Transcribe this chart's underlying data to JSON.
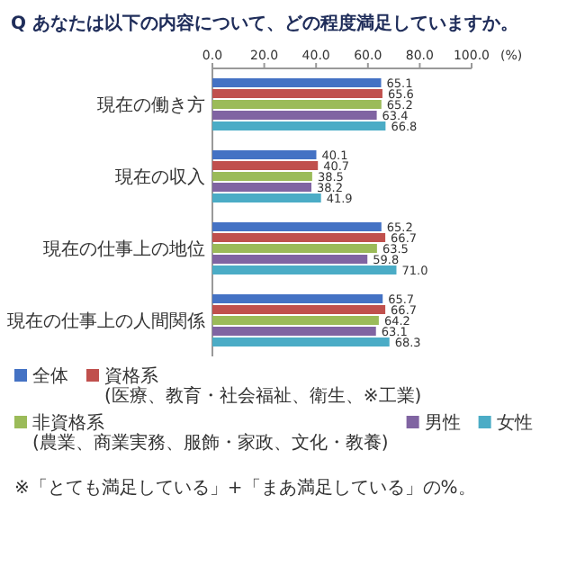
{
  "chart_data": {
    "type": "bar",
    "orientation": "horizontal",
    "title": "Q あなたは以下の内容について、どの程度満足していますか。",
    "xlabel": "(%)",
    "categories": [
      "現在の働き方",
      "現在の収入",
      "現在の仕事上の地位",
      "現在の仕事上の人間関係"
    ],
    "xlim": [
      0,
      100
    ],
    "xticks": [
      {
        "value": 0,
        "label": "0.0"
      },
      {
        "value": 20,
        "label": "20.0"
      },
      {
        "value": 40,
        "label": "40.0"
      },
      {
        "value": 60,
        "label": "60.0"
      },
      {
        "value": 80,
        "label": "80.0"
      },
      {
        "value": 100,
        "label": "100.0"
      }
    ],
    "series": [
      {
        "name": "全体",
        "color": "#4472c4",
        "values": [
          65.1,
          40.1,
          65.2,
          65.7
        ],
        "value_labels": [
          "65.1",
          "40.1",
          "65.2",
          "65.7"
        ]
      },
      {
        "name": "資格系\n(医療、教育・社会福祉、衛生、※工業)",
        "color": "#c0504d",
        "values": [
          65.6,
          40.7,
          66.7,
          66.7
        ],
        "value_labels": [
          "65.6",
          "40.7",
          "66.7",
          "66.7"
        ]
      },
      {
        "name": "非資格系\n(農業、商業実務、服飾・家政、文化・教養)",
        "color": "#9bbb59",
        "values": [
          65.2,
          38.5,
          63.5,
          64.2
        ],
        "value_labels": [
          "65.2",
          "38.5",
          "63.5",
          "64.2"
        ]
      },
      {
        "name": "男性",
        "color": "#8064a2",
        "values": [
          63.4,
          38.2,
          59.8,
          63.1
        ],
        "value_labels": [
          "63.4",
          "38.2",
          "59.8",
          "63.1"
        ]
      },
      {
        "name": "女性",
        "color": "#4bacc6",
        "values": [
          66.8,
          41.9,
          71.0,
          68.3
        ],
        "value_labels": [
          "66.8",
          "41.9",
          "71.0",
          "68.3"
        ]
      }
    ],
    "legend": "bottom",
    "grid": false,
    "annotations": [
      "※「とても満足している」+「まあ満足している」の%。"
    ]
  }
}
